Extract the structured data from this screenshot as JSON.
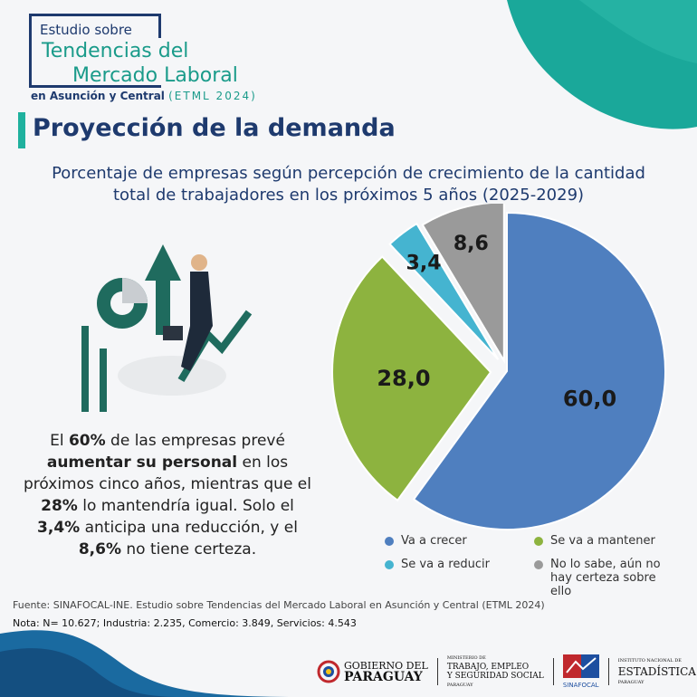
{
  "header": {
    "line1": "Estudio sobre",
    "line2": "Tendencias del",
    "line3": "Mercado Laboral",
    "line4": "en Asunción y Central",
    "line4_tag": "(ETML 2024)"
  },
  "title": "Proyección de la demanda",
  "subtitle_1": "Porcentaje de empresas según percepción de crecimiento de la cantidad",
  "subtitle_2": "total de trabajadores en los próximos 5 años (2025-2029)",
  "summary": {
    "p1": "El ",
    "b1": "60%",
    "p2": " de las empresas prevé ",
    "b2": "aumentar su personal",
    "p3": " en los próximos cinco años, mientras que el ",
    "b3": "28%",
    "p4": " lo mantendría igual. Solo el ",
    "b4": "3,4%",
    "p5": " anticipa una reducción, y el ",
    "b5": "8,6%",
    "p6": " no tiene certeza."
  },
  "chart_data": {
    "type": "pie",
    "categories": [
      "Va a crecer",
      "Se va a mantener",
      "Se va a reducir",
      "No lo sabe, aún no hay certeza sobre ello"
    ],
    "values": [
      60.0,
      28.0,
      3.4,
      8.6
    ],
    "labels": [
      "60,0",
      "28,0",
      "3,4",
      "8,6"
    ],
    "colors": [
      "#4f7fbf",
      "#8db33f",
      "#45b4d0",
      "#9a9a9a"
    ],
    "legend_position": "bottom"
  },
  "footer": {
    "source": "Fuente: SINAFOCAL-INE. Estudio sobre Tendencias del Mercado Laboral en Asunción y Central (ETML 2024)",
    "note": "Nota: N= 10.627; Industria: 2.235, Comercio: 3.849, Servicios: 4.543"
  },
  "logos": {
    "gob1": "GOBIERNO DEL",
    "gob2": "PARAGUAY",
    "mtess0": "MINISTERIO DE",
    "mtess1": "TRABAJO, EMPLEO",
    "mtess2": "Y SEGURIDAD SOCIAL",
    "mtess3": "PARAGUAY",
    "sinafocal": "SINAFOCAL",
    "ine0": "INSTITUTO NACIONAL DE",
    "ine1": "ESTADÍSTICA",
    "ine2": "PARAGUAY"
  }
}
